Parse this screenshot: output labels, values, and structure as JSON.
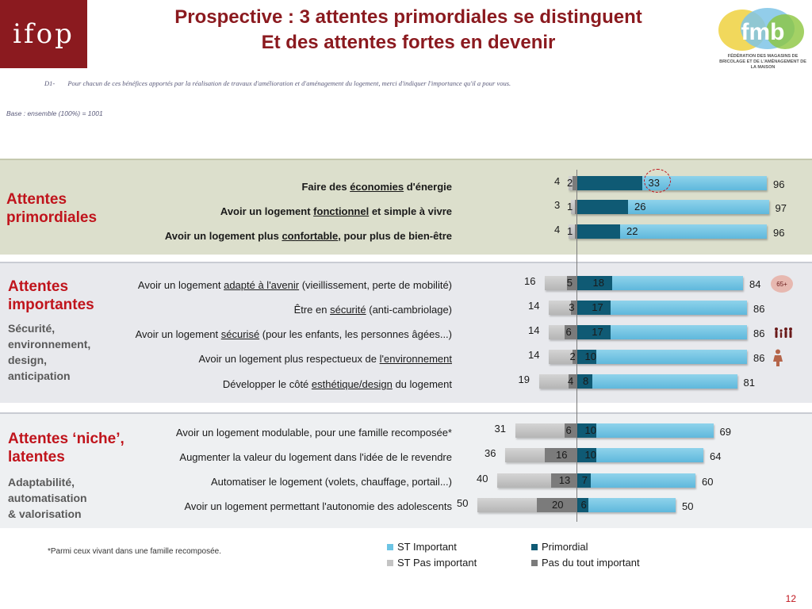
{
  "header": {
    "logo_text": "ifop",
    "title_line1": "Prospective : 3 attentes primordiales se distinguent",
    "title_line2": "Et des attentes fortes en devenir",
    "fmb_text": "fmb",
    "fmb_subtitle": "FÉDÉRATION DES MAGASINS DE BRICOLAGE ET DE L'AMÉNAGEMENT DE LA MAISON"
  },
  "question": {
    "number": "D1-",
    "text": "Pour chacun de ces bénéfices apportés par la réalisation de travaux d'amélioration et d'aménagement du logement, merci d'indiquer l'importance qu'il a pour vous."
  },
  "base": "Base : ensemble (100%) = 1001",
  "sections": [
    {
      "title_line1": "Attentes",
      "title_line2": "primordiales",
      "subtitle": []
    },
    {
      "title_line1": "Attentes",
      "title_line2": "importantes",
      "subtitle": [
        "Sécurité,",
        "environnement,",
        "design,",
        "anticipation"
      ]
    },
    {
      "title_line1": "Attentes ‘niche’,",
      "title_line2": "latentes",
      "subtitle": [
        "Adaptabilité,",
        "automatisation",
        "& valorisation"
      ]
    }
  ],
  "chart_data": {
    "type": "bar",
    "orientation": "horizontal-diverging",
    "categories": [
      "Faire des économies d'énergie",
      "Avoir un logement fonctionnel et simple à vivre",
      "Avoir un logement plus confortable, pour plus de bien-être",
      "Avoir un logement adapté à l'avenir (vieillissement, perte de mobilité)",
      "Être en sécurité (anti-cambriolage)",
      "Avoir un logement sécurisé (pour les enfants, les personnes âgées...)",
      "Avoir un logement plus respectueux de l'environnement",
      "Développer le côté esthétique/design du logement",
      "Avoir un logement modulable, pour une famille recomposée*",
      "Augmenter la valeur du logement dans l'idée de le revendre",
      "Automatiser le logement (volets, chauffage, portail...)",
      "Avoir un logement permettant l'autonomie des adolescents"
    ],
    "series": [
      {
        "name": "ST Important",
        "values": [
          96,
          97,
          96,
          84,
          86,
          86,
          86,
          81,
          69,
          64,
          60,
          50
        ]
      },
      {
        "name": "Primordial",
        "values": [
          33,
          26,
          22,
          18,
          17,
          17,
          10,
          8,
          10,
          10,
          7,
          6
        ]
      },
      {
        "name": "ST Pas important",
        "values": [
          4,
          3,
          4,
          16,
          14,
          14,
          14,
          19,
          31,
          36,
          40,
          50
        ]
      },
      {
        "name": "Pas du tout important",
        "values": [
          2,
          1,
          1,
          5,
          3,
          6,
          2,
          4,
          6,
          16,
          13,
          20
        ]
      }
    ],
    "label_html": [
      "Faire des <u>économies</u> d'énergie",
      "Avoir un logement <u>fonctionnel</u> et simple à vivre",
      "Avoir un logement plus <u>confortable</u>, pour plus de bien-être",
      "Avoir un logement <u>adapté à l'avenir</u> (vieillissement, perte de mobilité)",
      "Être en <u>sécurité</u> (anti-cambriolage)",
      "Avoir un logement <u>sécurisé</u> (pour les enfants, les personnes âgées...)",
      "Avoir un logement plus respectueux de <u>l'environnement</u>",
      "Développer le côté <u>esthétique/design</u> du logement",
      "Avoir un logement modulable, pour une famille recomposée*",
      "Augmenter la valeur du logement dans l'idée de le revendre",
      "Automatiser le logement (volets, chauffage, portail...)",
      "Avoir un logement permettant l'autonomie des adolescents"
    ],
    "bold_rows": [
      0,
      1,
      2
    ],
    "colors": {
      "st_important": "#6cc4e4",
      "primordial": "#0f5a74",
      "st_pas_important": "#c4c4c4",
      "pas_du_tout": "#7b7b7b"
    }
  },
  "annotations": {
    "badge_65": "65+"
  },
  "legend": [
    {
      "label": "ST Important",
      "color": "#6cc4e4"
    },
    {
      "label": "Primordial",
      "color": "#0f5a74"
    },
    {
      "label": "ST Pas important",
      "color": "#c4c4c4"
    },
    {
      "label": "Pas du tout important",
      "color": "#7b7b7b"
    }
  ],
  "footnote": "*Parmi ceux vivant dans une famille recomposée.",
  "page_number": "12"
}
